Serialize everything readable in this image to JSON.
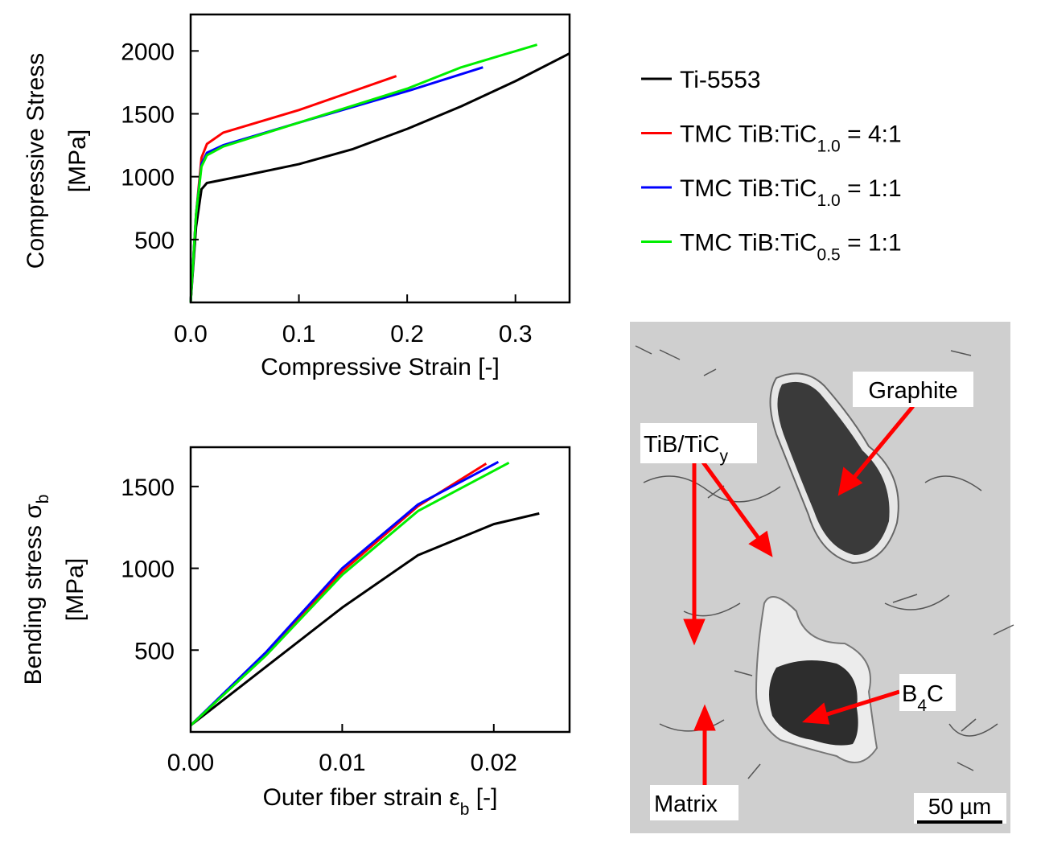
{
  "chart_data": [
    {
      "type": "line",
      "xlabel": "Compressive Strain [-]",
      "ylabel": {
        "main": "Compressive Stress",
        "unit": "[MPa]"
      },
      "xlim": [
        0,
        0.35
      ],
      "ylim": [
        0,
        2290
      ],
      "xticks": [
        {
          "value": 0,
          "label": "0.0"
        },
        0.1,
        0.2,
        0.3
      ],
      "yticks": [
        500,
        1000,
        1500,
        2000
      ],
      "series": [
        {
          "name": {
            "text": "Ti-5553"
          },
          "color": "#000000",
          "x": [
            0,
            0.005,
            0.01,
            0.015,
            0.05,
            0.1,
            0.15,
            0.2,
            0.25,
            0.3,
            0.35
          ],
          "values": [
            0,
            600,
            900,
            950,
            1010,
            1100,
            1220,
            1380,
            1560,
            1760,
            1980
          ]
        },
        {
          "name": {
            "text": "TMC TiB:TiC",
            "sub": "1.0",
            "tail": " = 4:1"
          },
          "color": "#ff0000",
          "x": [
            0,
            0.005,
            0.01,
            0.015,
            0.03,
            0.1,
            0.15,
            0.19
          ],
          "values": [
            0,
            700,
            1150,
            1260,
            1350,
            1530,
            1680,
            1800
          ]
        },
        {
          "name": {
            "text": "TMC TiB:TiC",
            "sub": "1.0",
            "tail": " = 1:1"
          },
          "color": "#0000ff",
          "x": [
            0,
            0.005,
            0.01,
            0.015,
            0.03,
            0.1,
            0.2,
            0.27
          ],
          "values": [
            0,
            700,
            1100,
            1190,
            1250,
            1430,
            1680,
            1870
          ]
        },
        {
          "name": {
            "text": "TMC TiB:TiC",
            "sub": "0.5",
            "tail": " = 1:1"
          },
          "color": "#00ee00",
          "x": [
            0,
            0.005,
            0.01,
            0.015,
            0.03,
            0.1,
            0.2,
            0.25,
            0.32
          ],
          "values": [
            0,
            700,
            1080,
            1170,
            1240,
            1430,
            1700,
            1870,
            2050
          ]
        }
      ]
    },
    {
      "type": "line",
      "xlabel": {
        "text": "Outer fiber strain ε",
        "sub": "b",
        "tail": " [-]"
      },
      "ylabel": {
        "main": {
          "text": "Bending stress σ",
          "sub": "b"
        },
        "unit": "[MPa]"
      },
      "xlim": [
        0,
        0.025
      ],
      "ylim": [
        0,
        1740
      ],
      "xticks": [
        {
          "value": 0,
          "label": "0.00"
        },
        0.01,
        0.02
      ],
      "yticks": [
        500,
        1000,
        1500
      ],
      "series": [
        {
          "color": "#000000",
          "x": [
            0,
            0.005,
            0.01,
            0.015,
            0.02,
            0.023
          ],
          "values": [
            40,
            400,
            760,
            1080,
            1270,
            1335
          ]
        },
        {
          "color": "#ff0000",
          "x": [
            0,
            0.005,
            0.01,
            0.015,
            0.0195
          ],
          "values": [
            40,
            480,
            980,
            1380,
            1640
          ]
        },
        {
          "color": "#0000ff",
          "x": [
            0,
            0.005,
            0.01,
            0.015,
            0.0203
          ],
          "values": [
            40,
            490,
            1000,
            1390,
            1650
          ]
        },
        {
          "color": "#00ee00",
          "x": [
            0,
            0.005,
            0.01,
            0.015,
            0.021
          ],
          "values": [
            40,
            470,
            960,
            1350,
            1645
          ]
        }
      ]
    }
  ],
  "micrograph": {
    "labels": [
      {
        "text": "Graphite"
      },
      {
        "text": "TiB/TiC",
        "sub": "y"
      },
      {
        "text": "B",
        "sub": "4",
        "tail": "C"
      },
      {
        "text": "Matrix"
      }
    ],
    "scale_bar": "50 µm"
  }
}
